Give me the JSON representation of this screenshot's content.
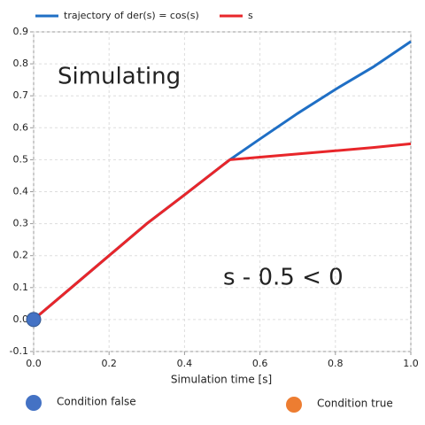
{
  "chart_data": {
    "type": "line",
    "xlabel": "Simulation time [s]",
    "x": [
      0,
      0.1,
      0.2,
      0.3,
      0.4,
      0.52,
      0.6,
      0.7,
      0.8,
      0.9,
      1.0
    ],
    "series": [
      {
        "name": "trajectory of der(s) = cos(s)",
        "color": "#1f6fc5",
        "values": [
          0,
          0.1,
          0.2,
          0.3,
          0.39,
          0.5,
          0.565,
          0.645,
          0.72,
          0.79,
          0.87
        ]
      },
      {
        "name": "s",
        "color": "#e8262a",
        "values": [
          0,
          0.1,
          0.2,
          0.3,
          0.39,
          0.5,
          0.508,
          0.518,
          0.528,
          0.538,
          0.55
        ]
      }
    ],
    "xlim": [
      0,
      1.0
    ],
    "xticks": [
      {
        "value": 0,
        "label": "0.0"
      },
      0.2,
      0.4,
      0.6,
      0.8,
      {
        "value": 1.0,
        "label": "1.0"
      }
    ],
    "ylim": [
      -0.1,
      0.9
    ],
    "yticks": [
      -0.1,
      {
        "value": 0,
        "label": "0.0"
      },
      0.1,
      0.2,
      0.3,
      0.4,
      0.5,
      0.6,
      0.7,
      0.8,
      0.9
    ],
    "grid": true,
    "marker": {
      "x": 0,
      "y": 0,
      "color": "#4472c4"
    },
    "annotations": [
      "Simulating",
      "s - 0.5 < 0"
    ],
    "conditions": [
      {
        "label": "Condition false",
        "color": "#4472c4"
      },
      {
        "label": "Condition true",
        "color": "#ed7d31"
      }
    ]
  }
}
